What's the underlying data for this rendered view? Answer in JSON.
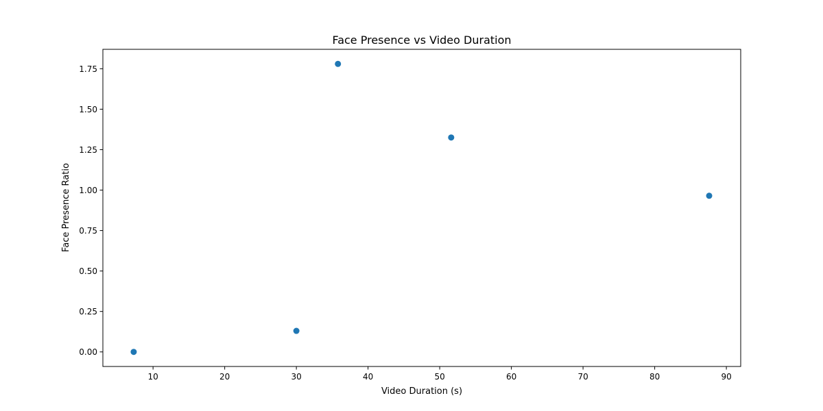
{
  "chart_data": {
    "type": "scatter",
    "title": "Face Presence vs Video Duration",
    "xlabel": "Video Duration (s)",
    "ylabel": "Face Presence Ratio",
    "xlim": [
      3.0,
      92.0
    ],
    "ylim": [
      -0.09,
      1.87
    ],
    "x_ticks": [
      10,
      20,
      30,
      40,
      50,
      60,
      70,
      80,
      90
    ],
    "x_tick_labels": [
      "10",
      "20",
      "30",
      "40",
      "50",
      "60",
      "70",
      "80",
      "90"
    ],
    "y_ticks": [
      0.0,
      0.25,
      0.5,
      0.75,
      1.0,
      1.25,
      1.5,
      1.75
    ],
    "y_tick_labels": [
      "0.00",
      "0.25",
      "0.50",
      "0.75",
      "1.00",
      "1.25",
      "1.50",
      "1.75"
    ],
    "grid": false,
    "legend": null,
    "marker_color": "#1f77b4",
    "points": [
      {
        "x": 7.3,
        "y": 0.0
      },
      {
        "x": 30.0,
        "y": 0.13
      },
      {
        "x": 35.8,
        "y": 1.78
      },
      {
        "x": 51.6,
        "y": 1.325
      },
      {
        "x": 87.6,
        "y": 0.965
      }
    ]
  }
}
